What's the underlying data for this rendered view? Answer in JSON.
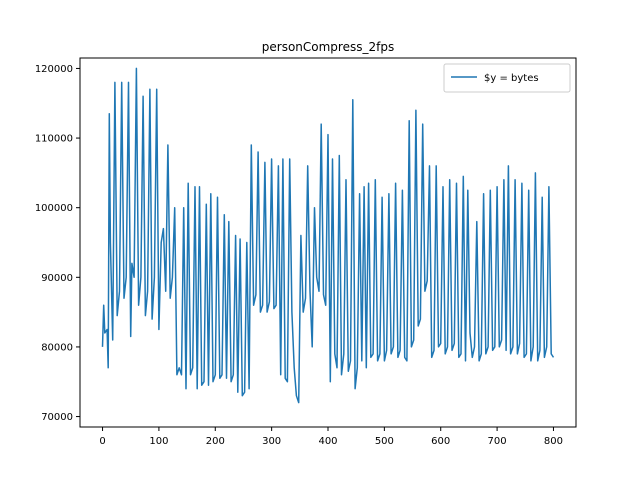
{
  "chart_data": {
    "type": "line",
    "title": "personCompress_2fps",
    "xlabel": "",
    "ylabel": "",
    "xlim": [
      -40,
      840
    ],
    "ylim": [
      68500,
      121500
    ],
    "xticks": [
      0,
      100,
      200,
      300,
      400,
      500,
      600,
      700,
      800
    ],
    "yticks": [
      70000,
      80000,
      90000,
      100000,
      110000,
      120000
    ],
    "grid": false,
    "legend": {
      "placement": "top-right",
      "entries": [
        "$y = bytes"
      ]
    },
    "series": [
      {
        "name": "$y = bytes",
        "color": "#1f77b4",
        "x": [
          0,
          2,
          4,
          8,
          10,
          12,
          14,
          18,
          22,
          26,
          30,
          34,
          38,
          42,
          46,
          50,
          52,
          56,
          60,
          64,
          68,
          72,
          76,
          80,
          84,
          88,
          92,
          96,
          100,
          104,
          108,
          112,
          116,
          120,
          124,
          128,
          132,
          136,
          140,
          144,
          148,
          152,
          156,
          160,
          164,
          168,
          172,
          176,
          180,
          184,
          188,
          192,
          196,
          200,
          204,
          208,
          212,
          216,
          220,
          224,
          228,
          232,
          236,
          240,
          244,
          248,
          252,
          256,
          260,
          264,
          268,
          272,
          276,
          280,
          284,
          288,
          292,
          296,
          300,
          304,
          308,
          312,
          316,
          320,
          324,
          328,
          332,
          336,
          340,
          344,
          348,
          352,
          356,
          360,
          364,
          368,
          372,
          376,
          380,
          384,
          388,
          392,
          396,
          400,
          404,
          408,
          412,
          416,
          420,
          424,
          428,
          432,
          436,
          440,
          444,
          448,
          452,
          456,
          460,
          464,
          468,
          472,
          476,
          480,
          484,
          488,
          492,
          496,
          500,
          504,
          508,
          512,
          516,
          520,
          524,
          528,
          532,
          536,
          540,
          544,
          548,
          552,
          556,
          560,
          564,
          568,
          572,
          576,
          580,
          584,
          588,
          592,
          596,
          600,
          604,
          608,
          612,
          616,
          620,
          624,
          628,
          632,
          636,
          640,
          644,
          648,
          652,
          656,
          660,
          664,
          668,
          672,
          676,
          680,
          684,
          688,
          692,
          696,
          700,
          704,
          708,
          712,
          716,
          720,
          724,
          728,
          732,
          736,
          740,
          744,
          748,
          752,
          756,
          760,
          764,
          768,
          772,
          776,
          780,
          784,
          788,
          792,
          796,
          800
        ],
        "y": [
          80000,
          86000,
          82000,
          82500,
          77000,
          113500,
          95000,
          81000,
          118000,
          84500,
          88000,
          118000,
          87000,
          90000,
          118000,
          81500,
          92000,
          90000,
          120000,
          86000,
          90000,
          116000,
          84500,
          88000,
          117000,
          84000,
          90000,
          117000,
          82500,
          95000,
          97000,
          88000,
          109000,
          87000,
          90000,
          100000,
          76000,
          77000,
          76000,
          100000,
          74000,
          103500,
          76000,
          77000,
          103000,
          74000,
          103000,
          74500,
          75000,
          100500,
          74500,
          102000,
          75000,
          76000,
          101500,
          75500,
          76000,
          99000,
          75500,
          98000,
          75000,
          76000,
          96000,
          73500,
          95500,
          73000,
          73500,
          95000,
          74000,
          109000,
          86000,
          87500,
          108000,
          85000,
          86000,
          106500,
          85000,
          86500,
          107000,
          85500,
          86000,
          106000,
          76000,
          107000,
          75500,
          75000,
          107000,
          85000,
          77000,
          73000,
          72000,
          96000,
          85000,
          87000,
          106000,
          88000,
          80000,
          100000,
          90000,
          88000,
          112000,
          87500,
          86000,
          110500,
          75000,
          107000,
          79000,
          77000,
          107500,
          76000,
          79000,
          104000,
          76500,
          78000,
          115500,
          74000,
          77000,
          102000,
          78000,
          103000,
          77000,
          103500,
          78500,
          79000,
          104000,
          78000,
          79000,
          101500,
          78000,
          79500,
          102000,
          79000,
          80000,
          103500,
          78500,
          79500,
          102500,
          78500,
          78000,
          112500,
          80000,
          81000,
          114000,
          83000,
          84000,
          112000,
          88000,
          89500,
          106000,
          78500,
          79500,
          106000,
          80000,
          80500,
          103000,
          79000,
          80000,
          104000,
          79500,
          80500,
          103500,
          78500,
          79000,
          104500,
          78000,
          102500,
          82000,
          78500,
          80000,
          98000,
          78000,
          79000,
          102000,
          79000,
          80000,
          102500,
          79500,
          80000,
          103000,
          80000,
          81000,
          104000,
          79500,
          106000,
          79000,
          80000,
          104000,
          79000,
          80500,
          103500,
          78500,
          79000,
          102500,
          78000,
          80000,
          105000,
          78000,
          79500,
          101500,
          78500,
          80000,
          103000,
          79000,
          78500
        ]
      }
    ]
  }
}
